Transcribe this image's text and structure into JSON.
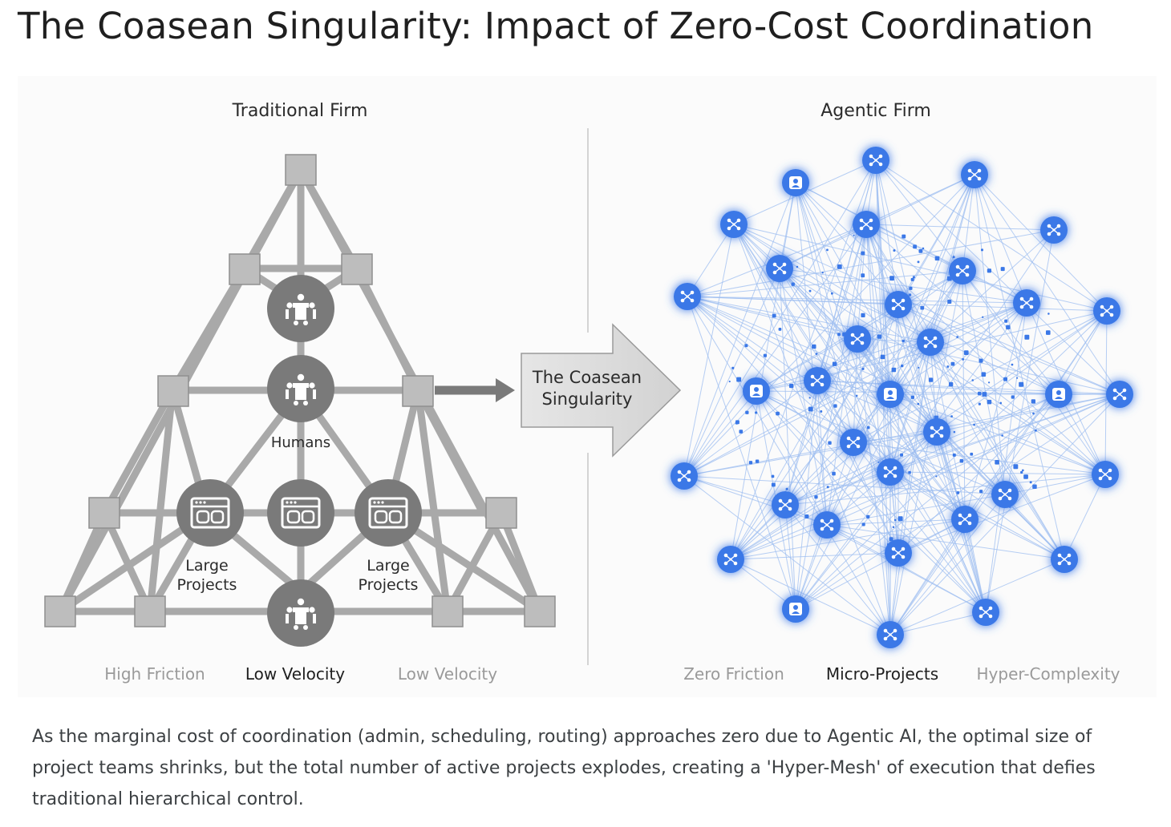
{
  "title": "The Coasean Singularity: Impact of Zero-Cost Coordination",
  "left_panel": {
    "title": "Traditional Firm",
    "humans_label": "Humans",
    "project_label_left_1": "Large",
    "project_label_left_2": "Projects",
    "project_label_right_1": "Large",
    "project_label_right_2": "Projects",
    "footer": [
      "High Friction",
      "Low Velocity",
      "Low Velocity"
    ]
  },
  "arrow": {
    "label_line1": "The Coasean",
    "label_line2": "Singularity"
  },
  "right_panel": {
    "title": "Agentic Firm",
    "footer": [
      "Zero Friction",
      "Micro-Projects",
      "Hyper-Complexity"
    ]
  },
  "colors": {
    "gray_node": "#7a7a7a",
    "gray_edge": "#a9a9a9",
    "gray_square": "#bdbdbd",
    "agent_blue": "#3b78e7",
    "mesh_line": "#9dbdf0",
    "muted_text": "#9a9a9a"
  },
  "icons": {
    "human_node": "meeting-table-icon",
    "project_node": "browser-window-icon",
    "agent_node": "network-nodes-icon",
    "human_agent_node": "person-icon"
  },
  "caption": "As the marginal cost of coordination (admin, scheduling, routing) approaches zero due to Agentic AI, the optimal size of project teams shrinks, but the total number of active projects explodes, creating a 'Hyper-Mesh' of execution that defies traditional hierarchical control."
}
